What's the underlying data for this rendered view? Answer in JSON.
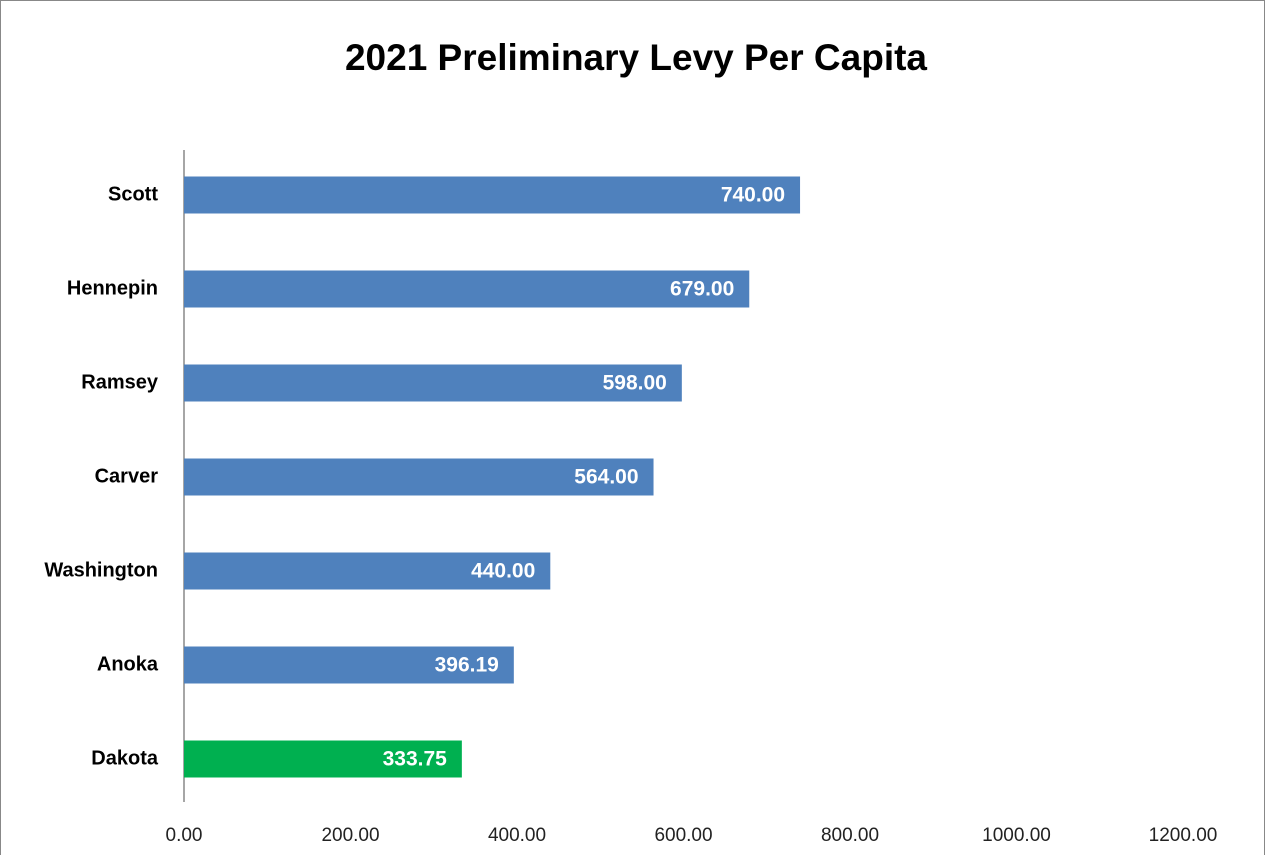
{
  "chart_data": {
    "type": "hbar",
    "title": "2021 Preliminary Levy Per Capita",
    "categories": [
      "Scott",
      "Hennepin",
      "Ramsey",
      "Carver",
      "Washington",
      "Anoka",
      "Dakota"
    ],
    "values": [
      740,
      679,
      598,
      564,
      440,
      396.19,
      333.75
    ],
    "value_labels": [
      "740.00",
      "679.00",
      "598.00",
      "564.00",
      "440.00",
      "396.19",
      "333.75"
    ],
    "colors": [
      "#4f81bd",
      "#4f81bd",
      "#4f81bd",
      "#4f81bd",
      "#4f81bd",
      "#4f81bd",
      "#00b050"
    ],
    "xlim": [
      0,
      1200
    ],
    "xticks": [
      {
        "value": 0,
        "label": "0.00"
      },
      {
        "value": 200,
        "label": "200.00"
      },
      {
        "value": 400,
        "label": "400.00"
      },
      {
        "value": 600,
        "label": "600.00"
      },
      {
        "value": 800,
        "label": "800.00"
      },
      {
        "value": 1000,
        "label": "1000.00"
      },
      {
        "value": 1200,
        "label": "1200.00"
      }
    ],
    "grid": false
  }
}
